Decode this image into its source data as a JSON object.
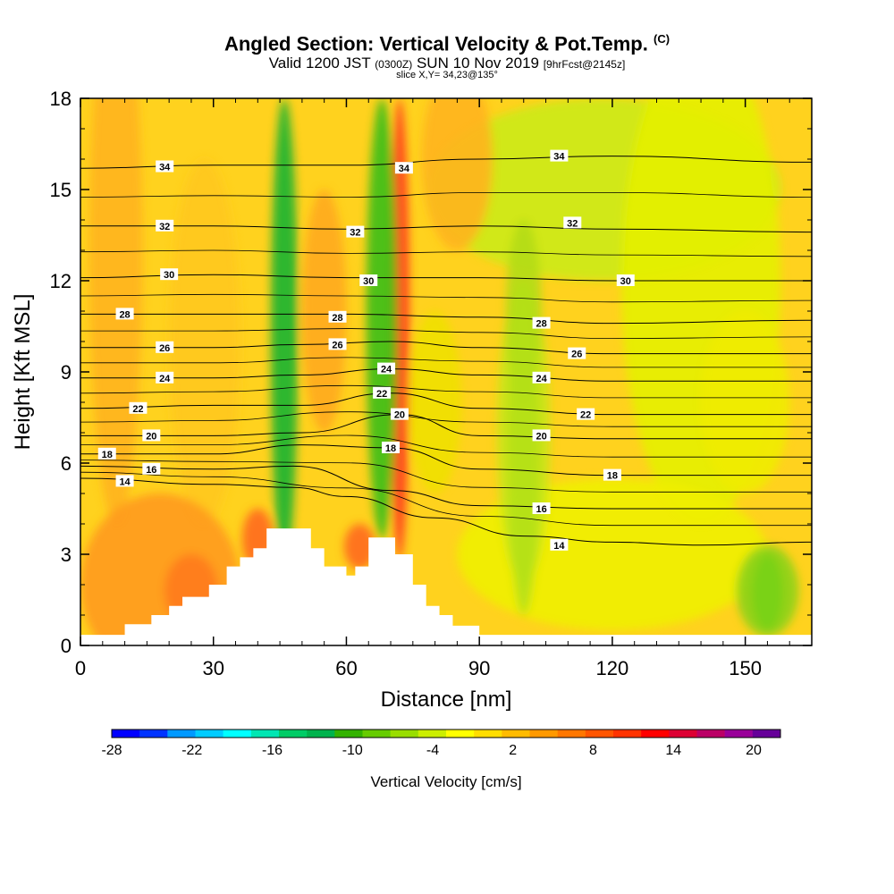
{
  "header": {
    "title_main": "Angled Section: Vertical Velocity & Pot.Temp.",
    "title_copyright": "(C)",
    "valid_prefix": "Valid 1200 JST",
    "valid_zulu": "(0300Z)",
    "valid_date": "SUN 10 Nov 2019",
    "valid_fcst": "[9hrFcst@2145z]",
    "slice": "slice X,Y= 34,23@135°"
  },
  "chart_data": {
    "type": "heatmap",
    "xlabel": "Distance [nm]",
    "ylabel": "Height [Kft MSL]",
    "xlim": [
      0,
      165
    ],
    "ylim": [
      0,
      18
    ],
    "x_ticks": [
      "0",
      "30",
      "60",
      "90",
      "120",
      "150"
    ],
    "x_tick_values": [
      0,
      30,
      60,
      90,
      120,
      150
    ],
    "y_ticks": [
      "0",
      "3",
      "6",
      "9",
      "12",
      "15",
      "18"
    ],
    "y_tick_values": [
      0,
      3,
      6,
      9,
      12,
      15,
      18
    ],
    "terrain": [
      [
        0,
        0.35
      ],
      [
        10,
        0.35
      ],
      [
        10,
        0.7
      ],
      [
        16,
        0.7
      ],
      [
        16,
        1.0
      ],
      [
        20,
        1.0
      ],
      [
        20,
        1.3
      ],
      [
        23,
        1.3
      ],
      [
        23,
        1.6
      ],
      [
        29,
        1.6
      ],
      [
        29,
        2.0
      ],
      [
        33,
        2.0
      ],
      [
        33,
        2.6
      ],
      [
        36,
        2.6
      ],
      [
        36,
        2.9
      ],
      [
        39,
        2.9
      ],
      [
        39,
        3.2
      ],
      [
        42,
        3.2
      ],
      [
        42,
        3.85
      ],
      [
        52,
        3.85
      ],
      [
        52,
        3.2
      ],
      [
        55,
        3.2
      ],
      [
        55,
        2.6
      ],
      [
        60,
        2.6
      ],
      [
        60,
        2.3
      ],
      [
        62,
        2.3
      ],
      [
        62,
        2.6
      ],
      [
        65,
        2.6
      ],
      [
        65,
        3.55
      ],
      [
        71,
        3.55
      ],
      [
        71,
        3.0
      ],
      [
        75,
        3.0
      ],
      [
        75,
        2.0
      ],
      [
        78,
        2.0
      ],
      [
        78,
        1.3
      ],
      [
        81,
        1.3
      ],
      [
        81,
        1.0
      ],
      [
        84,
        1.0
      ],
      [
        84,
        0.65
      ],
      [
        90,
        0.65
      ],
      [
        90,
        0.35
      ],
      [
        165,
        0.35
      ]
    ],
    "vertical_velocity_features": [
      {
        "kind": "updraft",
        "x": 72,
        "z_from": 2.8,
        "z_to": 18,
        "peak_cm_s": 16
      },
      {
        "kind": "downdraft",
        "x": 46,
        "z_from": 2.5,
        "z_to": 18,
        "peak_cm_s": -14
      },
      {
        "kind": "downdraft",
        "x": 68,
        "z_from": 3.5,
        "z_to": 18,
        "peak_cm_s": -10
      },
      {
        "kind": "updraft",
        "x": 40,
        "z_from": 2.5,
        "z_to": 4.5,
        "peak_cm_s": 10
      },
      {
        "kind": "updraft",
        "x": 63,
        "z_from": 2.5,
        "z_to": 4.0,
        "peak_cm_s": 10
      },
      {
        "kind": "downdraft",
        "x": 100,
        "z_from": 1.0,
        "z_to": 12,
        "peak_cm_s": -4
      },
      {
        "kind": "downdraft",
        "x": 155,
        "z_from": 0.5,
        "z_to": 3,
        "peak_cm_s": -6
      }
    ],
    "theta_contours": [
      {
        "value": 14,
        "heights": [
          [
            0,
            5.5
          ],
          [
            30,
            5.3
          ],
          [
            48,
            5.2
          ],
          [
            60,
            4.9
          ],
          [
            80,
            4.2
          ],
          [
            100,
            3.6
          ],
          [
            120,
            3.4
          ],
          [
            140,
            3.3
          ],
          [
            165,
            3.4
          ]
        ]
      },
      {
        "value": 16,
        "heights": [
          [
            0,
            5.9
          ],
          [
            30,
            5.8
          ],
          [
            48,
            5.9
          ],
          [
            70,
            5.1
          ],
          [
            90,
            4.6
          ],
          [
            120,
            4.5
          ],
          [
            165,
            4.5
          ]
        ]
      },
      {
        "value": 18,
        "heights": [
          [
            0,
            6.3
          ],
          [
            30,
            6.3
          ],
          [
            50,
            6.6
          ],
          [
            70,
            6.5
          ],
          [
            90,
            5.8
          ],
          [
            120,
            5.6
          ],
          [
            165,
            5.6
          ]
        ]
      },
      {
        "value": 20,
        "heights": [
          [
            0,
            6.9
          ],
          [
            30,
            6.9
          ],
          [
            50,
            7.0
          ],
          [
            72,
            7.6
          ],
          [
            90,
            6.9
          ],
          [
            120,
            6.8
          ],
          [
            165,
            6.8
          ]
        ]
      },
      {
        "value": 22,
        "heights": [
          [
            0,
            7.8
          ],
          [
            30,
            7.9
          ],
          [
            50,
            7.9
          ],
          [
            70,
            8.3
          ],
          [
            90,
            7.8
          ],
          [
            120,
            7.6
          ],
          [
            165,
            7.6
          ]
        ]
      },
      {
        "value": 24,
        "heights": [
          [
            0,
            8.8
          ],
          [
            30,
            8.8
          ],
          [
            50,
            8.9
          ],
          [
            70,
            9.1
          ],
          [
            90,
            8.9
          ],
          [
            120,
            8.7
          ],
          [
            165,
            8.7
          ]
        ]
      },
      {
        "value": 26,
        "heights": [
          [
            0,
            9.8
          ],
          [
            30,
            9.8
          ],
          [
            50,
            9.9
          ],
          [
            70,
            10.0
          ],
          [
            90,
            9.8
          ],
          [
            120,
            9.6
          ],
          [
            165,
            9.6
          ]
        ]
      },
      {
        "value": 28,
        "heights": [
          [
            0,
            10.9
          ],
          [
            30,
            10.9
          ],
          [
            60,
            10.9
          ],
          [
            90,
            10.8
          ],
          [
            120,
            10.6
          ],
          [
            165,
            10.7
          ]
        ]
      },
      {
        "value": 30,
        "heights": [
          [
            0,
            12.1
          ],
          [
            30,
            12.2
          ],
          [
            60,
            12.1
          ],
          [
            90,
            12.1
          ],
          [
            120,
            12.0
          ],
          [
            165,
            12.0
          ]
        ]
      },
      {
        "value": 32,
        "heights": [
          [
            0,
            13.8
          ],
          [
            30,
            13.8
          ],
          [
            60,
            13.7
          ],
          [
            90,
            13.8
          ],
          [
            120,
            13.7
          ],
          [
            165,
            13.6
          ]
        ]
      },
      {
        "value": 34,
        "heights": [
          [
            0,
            15.7
          ],
          [
            30,
            15.8
          ],
          [
            60,
            15.8
          ],
          [
            90,
            16.0
          ],
          [
            120,
            16.1
          ],
          [
            165,
            15.9
          ]
        ]
      }
    ],
    "contour_labels": [
      {
        "text": "34",
        "x": 19,
        "y": 15.75
      },
      {
        "text": "34",
        "x": 73,
        "y": 15.7
      },
      {
        "text": "34",
        "x": 108,
        "y": 16.1
      },
      {
        "text": "32",
        "x": 19,
        "y": 13.8
      },
      {
        "text": "32",
        "x": 62,
        "y": 13.6
      },
      {
        "text": "32",
        "x": 111,
        "y": 13.9
      },
      {
        "text": "30",
        "x": 20,
        "y": 12.2
      },
      {
        "text": "30",
        "x": 65,
        "y": 12.0
      },
      {
        "text": "30",
        "x": 123,
        "y": 12.0
      },
      {
        "text": "28",
        "x": 10,
        "y": 10.9
      },
      {
        "text": "28",
        "x": 58,
        "y": 10.8
      },
      {
        "text": "28",
        "x": 104,
        "y": 10.6
      },
      {
        "text": "26",
        "x": 19,
        "y": 9.8
      },
      {
        "text": "26",
        "x": 58,
        "y": 9.9
      },
      {
        "text": "26",
        "x": 112,
        "y": 9.6
      },
      {
        "text": "24",
        "x": 19,
        "y": 8.8
      },
      {
        "text": "24",
        "x": 69,
        "y": 9.1
      },
      {
        "text": "24",
        "x": 104,
        "y": 8.8
      },
      {
        "text": "22",
        "x": 13,
        "y": 7.8
      },
      {
        "text": "22",
        "x": 68,
        "y": 8.3
      },
      {
        "text": "22",
        "x": 114,
        "y": 7.6
      },
      {
        "text": "20",
        "x": 16,
        "y": 6.9
      },
      {
        "text": "20",
        "x": 72,
        "y": 7.6
      },
      {
        "text": "20",
        "x": 104,
        "y": 6.9
      },
      {
        "text": "18",
        "x": 6,
        "y": 6.3
      },
      {
        "text": "18",
        "x": 70,
        "y": 6.5
      },
      {
        "text": "18",
        "x": 120,
        "y": 5.6
      },
      {
        "text": "16",
        "x": 16,
        "y": 5.8
      },
      {
        "text": "16",
        "x": 104,
        "y": 4.5
      },
      {
        "text": "14",
        "x": 10,
        "y": 5.4
      },
      {
        "text": "14",
        "x": 108,
        "y": 3.3
      }
    ],
    "colorbar": {
      "title": "Vertical Velocity [cm/s]",
      "tick_labels": [
        "-28",
        "-22",
        "-16",
        "-10",
        "-4",
        "2",
        "8",
        "14",
        "20"
      ],
      "colors": [
        "#0000ff",
        "#0033ff",
        "#0099ff",
        "#00ccff",
        "#00ffff",
        "#00e6b3",
        "#00cc66",
        "#00b34d",
        "#33b300",
        "#66cc00",
        "#99dd00",
        "#ccee00",
        "#ffff00",
        "#ffdd00",
        "#ffbb00",
        "#ff9900",
        "#ff7700",
        "#ff5500",
        "#ff3300",
        "#ff0000",
        "#dd0033",
        "#bb0066",
        "#990099",
        "#660099"
      ]
    }
  }
}
